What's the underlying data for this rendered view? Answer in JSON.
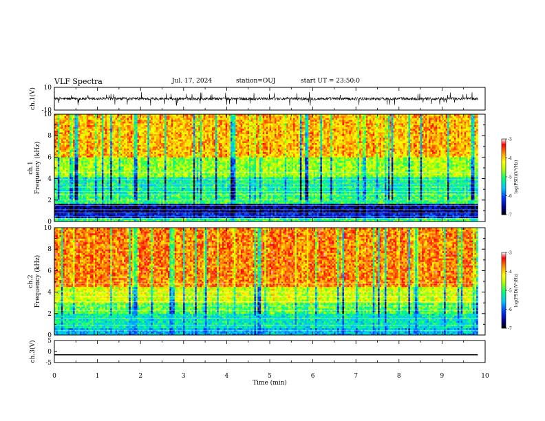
{
  "header": {
    "title": "VLF Spectra",
    "date": "Jul. 17, 2024",
    "station": "station=OUJ",
    "start_ut": "start UT =  23:50:0"
  },
  "colors": {
    "background": "#ffffff",
    "axis": "#000000",
    "waveform": "#000000",
    "colormap": [
      "#ffffff",
      "#ff0000",
      "#ffa000",
      "#ffff00",
      "#00ff00",
      "#00ffff",
      "#0080ff",
      "#0000c0",
      "#000000"
    ]
  },
  "chart_data": [
    {
      "type": "line",
      "panel": "ch1_waveform",
      "ylabel": "ch.1(V)",
      "ylim": [
        -10,
        10
      ],
      "yticks": [
        10,
        -10
      ],
      "xlim": [
        0,
        10
      ],
      "description_values": {
        "mean_level_V": 0,
        "typical_amplitude_V": 2,
        "spikes_max_V": 6
      }
    },
    {
      "type": "heatmap",
      "panel": "ch1_spectrogram",
      "ylabel": "ch.1\nFrequency (kHz)",
      "ylim": [
        0,
        10
      ],
      "yticks": [
        0,
        2,
        4,
        6,
        8,
        10
      ],
      "xlim": [
        0,
        9.83
      ],
      "colorbar": {
        "label": "log(PSD)(V²/Hz)",
        "range": [
          -7,
          -3
        ],
        "ticks": [
          -3,
          -4,
          -5,
          -6,
          -7
        ]
      },
      "bands": [
        {
          "f_from": 0,
          "f_to": 0.3,
          "level": -5.0
        },
        {
          "f_from": 0.3,
          "f_to": 0.8,
          "level": -6.3
        },
        {
          "f_from": 0.8,
          "f_to": 1.7,
          "level": -6.6
        },
        {
          "f_from": 1.7,
          "f_to": 2.6,
          "level": -5.0
        },
        {
          "f_from": 2.6,
          "f_to": 4.2,
          "level": -5.2
        },
        {
          "f_from": 4.2,
          "f_to": 6.0,
          "level": -4.6
        },
        {
          "f_from": 6.0,
          "f_to": 10.0,
          "level": -3.9
        }
      ],
      "hlines_kHz": [
        0.3,
        0.5,
        0.8,
        1.1,
        1.5,
        2.0,
        2.5,
        2.8,
        3.2,
        3.5,
        3.9,
        4.6
      ]
    },
    {
      "type": "heatmap",
      "panel": "ch2_spectrogram",
      "ylabel": "ch.2\nFrequency (kHz)",
      "ylim": [
        0,
        10
      ],
      "yticks": [
        0,
        2,
        4,
        6,
        8,
        10
      ],
      "xlim": [
        0,
        9.83
      ],
      "colorbar": {
        "label": "log(PSD)(V²/Hz)",
        "range": [
          -7,
          -3
        ],
        "ticks": [
          -3,
          -4,
          -5,
          -6,
          -7
        ]
      },
      "bands": [
        {
          "f_from": 0,
          "f_to": 0.6,
          "level": -5.6
        },
        {
          "f_from": 0.6,
          "f_to": 2.0,
          "level": -5.3
        },
        {
          "f_from": 2.0,
          "f_to": 3.0,
          "level": -4.9
        },
        {
          "f_from": 3.0,
          "f_to": 4.5,
          "level": -4.4
        },
        {
          "f_from": 4.5,
          "f_to": 10.0,
          "level": -3.7
        }
      ],
      "hlines_kHz": [
        0.4,
        0.9,
        1.5,
        2.3,
        2.7,
        3.1,
        3.6,
        4.0,
        4.8
      ]
    },
    {
      "type": "line",
      "panel": "ch3_waveform",
      "ylabel": "ch.3(V)",
      "ylim": [
        -5,
        5
      ],
      "yticks": [
        5,
        0,
        -5
      ],
      "xlim": [
        0,
        10
      ],
      "x": [
        0,
        9.83
      ],
      "y": [
        -1.5,
        -1.5
      ],
      "xlabel": "Time (min)",
      "xticks": [
        0,
        1,
        2,
        3,
        4,
        5,
        6,
        7,
        8,
        9,
        10
      ]
    }
  ]
}
